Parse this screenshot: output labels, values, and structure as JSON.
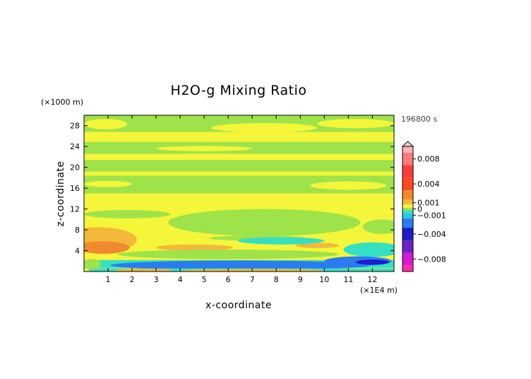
{
  "chart_data": {
    "type": "heatmap",
    "title": "H2O-g Mixing Ratio",
    "xlabel": "x-coordinate",
    "ylabel": "z-coordinate",
    "x_unit": "(×1E4 m)",
    "y_unit": "(×1000 m)",
    "time_label": "196800 s",
    "xlim": [
      0,
      12.9
    ],
    "ylim": [
      0,
      30
    ],
    "x_ticks": [
      1,
      2,
      3,
      4,
      5,
      6,
      7,
      8,
      9,
      10,
      11,
      12
    ],
    "y_ticks": [
      4,
      8,
      12,
      16,
      20,
      24,
      28
    ],
    "colorbar": {
      "range": [
        -0.01,
        0.01
      ],
      "tick_values": [
        0.008,
        0.004,
        0.001,
        0,
        -0.001,
        -0.004,
        -0.008
      ],
      "tick_labels": [
        "0.008",
        "0.004",
        "0.001",
        "0",
        "−0.001",
        "−0.004",
        "−0.008"
      ],
      "stops": [
        {
          "v": -0.01,
          "color": "#ff2aa8"
        },
        {
          "v": -0.008,
          "color": "#d61ad0"
        },
        {
          "v": -0.006,
          "color": "#6a22c8"
        },
        {
          "v": -0.004,
          "color": "#1c1ccf"
        },
        {
          "v": -0.002,
          "color": "#2a7cf0"
        },
        {
          "v": -0.001,
          "color": "#27c6e8"
        },
        {
          "v": -0.0004,
          "color": "#35e0c2"
        },
        {
          "v": 0.0,
          "color": "#9ee34a"
        },
        {
          "v": 0.0004,
          "color": "#f5f53a"
        },
        {
          "v": 0.001,
          "color": "#f2b83a"
        },
        {
          "v": 0.002,
          "color": "#ef8a2e"
        },
        {
          "v": 0.004,
          "color": "#ff4a1f"
        },
        {
          "v": 0.006,
          "color": "#ff3c3c"
        },
        {
          "v": 0.008,
          "color": "#ff7a7a"
        },
        {
          "v": 0.01,
          "color": "#ffb3b3"
        }
      ]
    },
    "fields": [
      {
        "shape": "rect",
        "x0": 0,
        "x1": 12.9,
        "z0": 0,
        "z1": 30,
        "value": 0.0006
      },
      {
        "shape": "band",
        "x0": 0,
        "x1": 12.9,
        "z0": 26.8,
        "z1": 30,
        "value": 0.0
      },
      {
        "shape": "band",
        "x0": 0,
        "x1": 12.9,
        "z0": 22.6,
        "z1": 24.9,
        "value": 0.0
      },
      {
        "shape": "band",
        "x0": 0,
        "x1": 12.9,
        "z0": 19.2,
        "z1": 21.4,
        "value": 0.0
      },
      {
        "shape": "band",
        "x0": 0,
        "x1": 12.9,
        "z0": 15.0,
        "z1": 18.4,
        "value": 0.0
      },
      {
        "shape": "ellipse",
        "cx": 0.9,
        "cz": 28.3,
        "rx": 0.9,
        "rz": 1.0,
        "value": 0.0006
      },
      {
        "shape": "ellipse",
        "cx": 7.5,
        "cz": 27.6,
        "rx": 2.2,
        "rz": 0.9,
        "value": 0.0006
      },
      {
        "shape": "ellipse",
        "cx": 11.3,
        "cz": 28.4,
        "rx": 1.6,
        "rz": 0.9,
        "value": 0.0006
      },
      {
        "shape": "ellipse",
        "cx": 5.0,
        "cz": 23.6,
        "rx": 2.0,
        "rz": 0.5,
        "value": 0.0006
      },
      {
        "shape": "ellipse",
        "cx": 11.0,
        "cz": 16.5,
        "rx": 1.6,
        "rz": 0.8,
        "value": 0.0006
      },
      {
        "shape": "ellipse",
        "cx": 1.0,
        "cz": 16.8,
        "rx": 1.0,
        "rz": 0.6,
        "value": 0.0006
      },
      {
        "shape": "ellipse",
        "cx": 7.5,
        "cz": 9.4,
        "rx": 4.0,
        "rz": 2.6,
        "value": 0.0
      },
      {
        "shape": "ellipse",
        "cx": 1.8,
        "cz": 11.0,
        "rx": 1.8,
        "rz": 0.8,
        "value": 0.0
      },
      {
        "shape": "ellipse",
        "cx": 12.4,
        "cz": 8.6,
        "rx": 0.8,
        "rz": 1.4,
        "value": 0.0
      },
      {
        "shape": "ellipse",
        "cx": 0.6,
        "cz": 6.1,
        "rx": 1.6,
        "rz": 2.4,
        "value": 0.0015
      },
      {
        "shape": "ellipse",
        "cx": 0.8,
        "cz": 4.6,
        "rx": 1.1,
        "rz": 1.2,
        "value": 0.003
      },
      {
        "shape": "ellipse",
        "cx": 4.6,
        "cz": 4.6,
        "rx": 1.6,
        "rz": 0.6,
        "value": 0.0015
      },
      {
        "shape": "ellipse",
        "cx": 9.7,
        "cz": 5.0,
        "rx": 0.9,
        "rz": 0.5,
        "value": 0.0015
      },
      {
        "shape": "ellipse",
        "cx": 7.2,
        "cz": 6.4,
        "rx": 2.0,
        "rz": 0.5,
        "value": 0.0
      },
      {
        "shape": "ellipse",
        "cx": 8.2,
        "cz": 5.9,
        "rx": 1.8,
        "rz": 0.7,
        "value": -0.0006
      },
      {
        "shape": "ellipse",
        "cx": 6.0,
        "cz": 3.3,
        "rx": 4.6,
        "rz": 0.9,
        "value": 0.0
      },
      {
        "shape": "ellipse",
        "cx": 12.0,
        "cz": 4.2,
        "rx": 1.2,
        "rz": 1.4,
        "value": -0.0006
      },
      {
        "shape": "band",
        "x0": 0.5,
        "x1": 12.9,
        "z0": 0.7,
        "z1": 2.2,
        "value": -0.0006
      },
      {
        "shape": "ellipse",
        "cx": 6.5,
        "cz": 1.2,
        "rx": 5.4,
        "rz": 0.9,
        "value": -0.0015
      },
      {
        "shape": "ellipse",
        "cx": 11.4,
        "cz": 2.0,
        "rx": 1.4,
        "rz": 0.9,
        "value": -0.0015
      },
      {
        "shape": "ellipse",
        "cx": 12.0,
        "cz": 1.8,
        "rx": 0.7,
        "rz": 0.5,
        "value": -0.003
      },
      {
        "shape": "band",
        "x0": 0.2,
        "x1": 12.9,
        "z0": 0,
        "z1": 0.6,
        "value": -0.0006
      },
      {
        "shape": "ellipse",
        "cx": 2.5,
        "cz": 0.2,
        "rx": 1.2,
        "rz": 0.35,
        "value": 0.0015
      },
      {
        "shape": "ellipse",
        "cx": 7.0,
        "cz": 0.2,
        "rx": 3.0,
        "rz": 0.3,
        "value": 0.0015
      },
      {
        "shape": "ellipse",
        "cx": 0.3,
        "cz": 1.4,
        "rx": 0.4,
        "rz": 1.0,
        "value": 0.0
      }
    ]
  }
}
